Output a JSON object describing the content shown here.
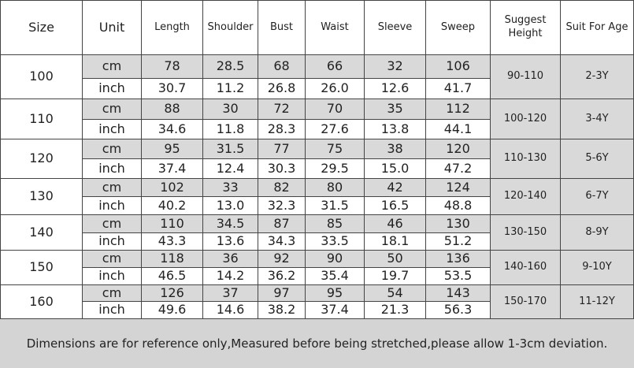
{
  "table": {
    "header": [
      "Size",
      "Unit",
      "Length",
      "Shoulder",
      "Bust",
      "Waist",
      "Sleeve",
      "Sweep",
      "Suggest Height",
      "Suit For Age"
    ],
    "rows": [
      {
        "size": "100",
        "cm": [
          "cm",
          "78",
          "28.5",
          "68",
          "66",
          "32",
          "106"
        ],
        "inch": [
          "inch",
          "30.7",
          "11.2",
          "26.8",
          "26.0",
          "12.6",
          "41.7"
        ],
        "height": "90-110",
        "age": "2-3Y"
      },
      {
        "size": "110",
        "cm": [
          "cm",
          "88",
          "30",
          "72",
          "70",
          "35",
          "112"
        ],
        "inch": [
          "inch",
          "34.6",
          "11.8",
          "28.3",
          "27.6",
          "13.8",
          "44.1"
        ],
        "height": "100-120",
        "age": "3-4Y"
      },
      {
        "size": "120",
        "cm": [
          "cm",
          "95",
          "31.5",
          "77",
          "75",
          "38",
          "120"
        ],
        "inch": [
          "inch",
          "37.4",
          "12.4",
          "30.3",
          "29.5",
          "15.0",
          "47.2"
        ],
        "height": "110-130",
        "age": "5-6Y"
      },
      {
        "size": "130",
        "cm": [
          "cm",
          "102",
          "33",
          "82",
          "80",
          "42",
          "124"
        ],
        "inch": [
          "inch",
          "40.2",
          "13.0",
          "32.3",
          "31.5",
          "16.5",
          "48.8"
        ],
        "height": "120-140",
        "age": "6-7Y"
      },
      {
        "size": "140",
        "cm": [
          "cm",
          "110",
          "34.5",
          "87",
          "85",
          "46",
          "130"
        ],
        "inch": [
          "inch",
          "43.3",
          "13.6",
          "34.3",
          "33.5",
          "18.1",
          "51.2"
        ],
        "height": "130-150",
        "age": "8-9Y"
      },
      {
        "size": "150",
        "cm": [
          "cm",
          "118",
          "36",
          "92",
          "90",
          "50",
          "136"
        ],
        "inch": [
          "inch",
          "46.5",
          "14.2",
          "36.2",
          "35.4",
          "19.7",
          "53.5"
        ],
        "height": "140-160",
        "age": "9-10Y"
      },
      {
        "size": "160",
        "cm": [
          "cm",
          "126",
          "37",
          "97",
          "95",
          "54",
          "143"
        ],
        "inch": [
          "inch",
          "49.6",
          "14.6",
          "38.2",
          "37.4",
          "21.3",
          "56.3"
        ],
        "height": "150-170",
        "age": "11-12Y"
      }
    ],
    "note": "Dimensions are for reference only,Measured before being stretched,please allow 1-3cm deviation."
  }
}
